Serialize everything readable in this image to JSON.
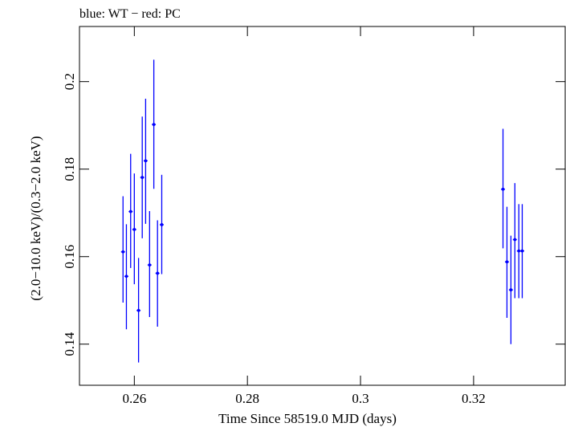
{
  "chart_data": {
    "type": "scatter",
    "title": "blue: WT − red: PC",
    "xlabel": "Time Since 58519.0 MJD (days)",
    "ylabel": "(2.0−10.0 keV)/(0.3−2.0 keV)",
    "xlim": [
      0.2503,
      0.3362
    ],
    "ylim": [
      0.1306,
      0.2126
    ],
    "xticks": [
      0.26,
      0.28,
      0.3,
      0.32
    ],
    "xtick_labels": [
      "0.26",
      "0.28",
      "0.3",
      "0.32"
    ],
    "yticks": [
      0.14,
      0.16,
      0.18,
      0.2
    ],
    "ytick_labels": [
      "0.14",
      "0.16",
      "0.18",
      "0.2"
    ],
    "grid": false,
    "legend": "none",
    "series": [
      {
        "color": "#0000ff",
        "points": [
          {
            "x": 0.258,
            "y": 0.1611,
            "xerr": 0.00035,
            "ylo": 0.1495,
            "yhi": 0.1738
          },
          {
            "x": 0.2586,
            "y": 0.1555,
            "xerr": 0.00035,
            "ylo": 0.1434,
            "yhi": 0.1674
          },
          {
            "x": 0.25935,
            "y": 0.1703,
            "xerr": 0.00035,
            "ylo": 0.1574,
            "yhi": 0.1835
          },
          {
            "x": 0.26,
            "y": 0.1662,
            "xerr": 0.00035,
            "ylo": 0.1537,
            "yhi": 0.179
          },
          {
            "x": 0.26075,
            "y": 0.1477,
            "xerr": 0.00035,
            "ylo": 0.1358,
            "yhi": 0.1597
          },
          {
            "x": 0.2614,
            "y": 0.1781,
            "xerr": 0.00035,
            "ylo": 0.1642,
            "yhi": 0.192
          },
          {
            "x": 0.262,
            "y": 0.1819,
            "xerr": 0.00035,
            "ylo": 0.1675,
            "yhi": 0.1961
          },
          {
            "x": 0.2627,
            "y": 0.1581,
            "xerr": 0.00035,
            "ylo": 0.1462,
            "yhi": 0.1704
          },
          {
            "x": 0.26345,
            "y": 0.1902,
            "xerr": 0.00035,
            "ylo": 0.1755,
            "yhi": 0.205
          },
          {
            "x": 0.2641,
            "y": 0.1562,
            "xerr": 0.00035,
            "ylo": 0.144,
            "yhi": 0.1683
          },
          {
            "x": 0.26485,
            "y": 0.1673,
            "xerr": 0.00035,
            "ylo": 0.156,
            "yhi": 0.1787
          },
          {
            "x": 0.3252,
            "y": 0.1754,
            "xerr": 0.00035,
            "ylo": 0.1619,
            "yhi": 0.1892
          },
          {
            "x": 0.3259,
            "y": 0.1588,
            "xerr": 0.00035,
            "ylo": 0.146,
            "yhi": 0.1714
          },
          {
            "x": 0.3266,
            "y": 0.1524,
            "xerr": 0.00035,
            "ylo": 0.14,
            "yhi": 0.1648
          },
          {
            "x": 0.3273,
            "y": 0.1639,
            "xerr": 0.00035,
            "ylo": 0.1505,
            "yhi": 0.1768
          },
          {
            "x": 0.328,
            "y": 0.1613,
            "xerr": 0.00035,
            "ylo": 0.1505,
            "yhi": 0.172
          },
          {
            "x": 0.3286,
            "y": 0.1613,
            "xerr": 0.00035,
            "ylo": 0.1505,
            "yhi": 0.172
          }
        ]
      }
    ]
  }
}
